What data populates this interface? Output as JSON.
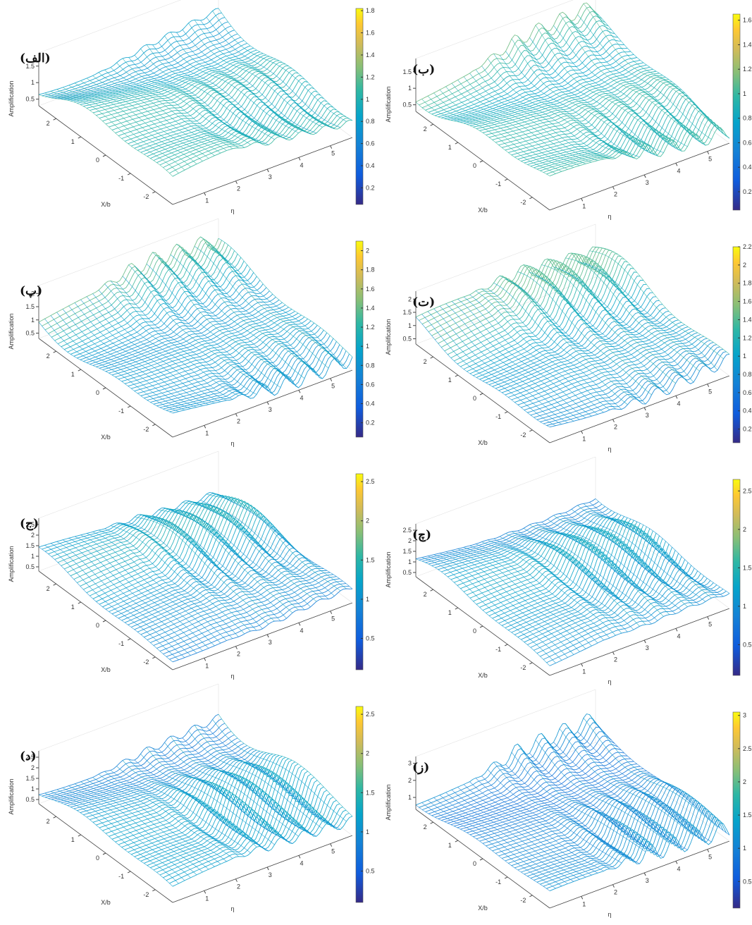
{
  "xb_lim": [
    -2.7,
    2.7
  ],
  "eta_lim": [
    0,
    5.7
  ],
  "panels": [
    {
      "label": "(الف)",
      "z_label": "Amplification",
      "x_label": "X/b",
      "y_label": "η",
      "xb_ticks": [
        -2,
        -1,
        0,
        1,
        2
      ],
      "eta_ticks": [
        1,
        2,
        3,
        4,
        5
      ],
      "z_ticks": [
        0.5,
        1,
        1.5
      ],
      "zlim": [
        0.3,
        1.9
      ],
      "colorbar_ticks": [
        0.2,
        0.4,
        0.6,
        0.8,
        1,
        1.2,
        1.4,
        1.6,
        1.8
      ],
      "colorbar_lim": [
        0.05,
        1.82
      ]
    },
    {
      "label": "(ب)",
      "z_label": "Amplification",
      "x_label": "X/b",
      "y_label": "η",
      "xb_ticks": [
        -2,
        -1,
        0,
        1,
        2
      ],
      "eta_ticks": [
        1,
        2,
        3,
        4,
        5
      ],
      "z_ticks": [
        0.5,
        1,
        1.5
      ],
      "zlim": [
        0.3,
        1.9
      ],
      "colorbar_ticks": [
        0.2,
        0.4,
        0.6,
        0.8,
        1,
        1.2,
        1.4,
        1.6
      ],
      "colorbar_lim": [
        0.05,
        1.65
      ]
    },
    {
      "label": "(پ)",
      "z_label": "Amplification",
      "x_label": "X/b",
      "y_label": "η",
      "xb_ticks": [
        -2,
        -1,
        0,
        1,
        2
      ],
      "eta_ticks": [
        1,
        2,
        3,
        4,
        5
      ],
      "z_ticks": [
        0.5,
        1,
        1.5,
        2
      ],
      "zlim": [
        0.3,
        2.3
      ],
      "colorbar_ticks": [
        0.2,
        0.4,
        0.6,
        0.8,
        1,
        1.2,
        1.4,
        1.6,
        1.8,
        2
      ],
      "colorbar_lim": [
        0.05,
        2.1
      ]
    },
    {
      "label": "(ت)",
      "z_label": "Amplification",
      "x_label": "X/b",
      "y_label": "η",
      "xb_ticks": [
        -2,
        -1,
        0,
        1,
        2
      ],
      "eta_ticks": [
        1,
        2,
        3,
        4,
        5
      ],
      "z_ticks": [
        0.5,
        1,
        1.5,
        2
      ],
      "zlim": [
        0.3,
        2.3
      ],
      "colorbar_ticks": [
        0.2,
        0.4,
        0.6,
        0.8,
        1,
        1.2,
        1.4,
        1.6,
        1.8,
        2,
        2.2
      ],
      "colorbar_lim": [
        0.05,
        2.2
      ]
    },
    {
      "label": "(ج)",
      "z_label": "Amplification",
      "x_label": "X/b",
      "y_label": "η",
      "xb_ticks": [
        -2,
        -1,
        0,
        1,
        2
      ],
      "eta_ticks": [
        1,
        2,
        3,
        4,
        5
      ],
      "z_ticks": [
        0.5,
        1,
        1.5,
        2,
        2.5
      ],
      "zlim": [
        0.3,
        2.8
      ],
      "colorbar_ticks": [
        0.5,
        1,
        1.5,
        2,
        2.5
      ],
      "colorbar_lim": [
        0.1,
        2.6
      ]
    },
    {
      "label": "(چ)",
      "z_label": "Amplification",
      "x_label": "X/b",
      "y_label": "η",
      "xb_ticks": [
        -2,
        -1,
        0,
        1,
        2
      ],
      "eta_ticks": [
        1,
        2,
        3,
        4,
        5
      ],
      "z_ticks": [
        0.5,
        1,
        1.5,
        2,
        2.5
      ],
      "zlim": [
        0.3,
        2.8
      ],
      "colorbar_ticks": [
        0.5,
        1,
        1.5,
        2,
        2.5
      ],
      "colorbar_lim": [
        0.1,
        2.65
      ]
    },
    {
      "label": "(د)",
      "z_label": "Amplification",
      "x_label": "X/b",
      "y_label": "η",
      "xb_ticks": [
        -2,
        -1,
        0,
        1,
        2
      ],
      "eta_ticks": [
        1,
        2,
        3,
        4,
        5
      ],
      "z_ticks": [
        0.5,
        1,
        1.5,
        2,
        2.5
      ],
      "zlim": [
        0.3,
        2.8
      ],
      "colorbar_ticks": [
        0.5,
        1,
        1.5,
        2,
        2.5
      ],
      "colorbar_lim": [
        0.1,
        2.6
      ]
    },
    {
      "label": "(ز)",
      "z_label": "Amplification",
      "x_label": "X/b",
      "y_label": "η",
      "xb_ticks": [
        -2,
        -1,
        0,
        1,
        2
      ],
      "eta_ticks": [
        1,
        2,
        3,
        4,
        5
      ],
      "z_ticks": [
        1,
        2,
        3
      ],
      "zlim": [
        0.3,
        3.4
      ],
      "colorbar_ticks": [
        0.5,
        1,
        1.5,
        2,
        2.5,
        3
      ],
      "colorbar_lim": [
        0.1,
        3.05
      ]
    }
  ]
}
